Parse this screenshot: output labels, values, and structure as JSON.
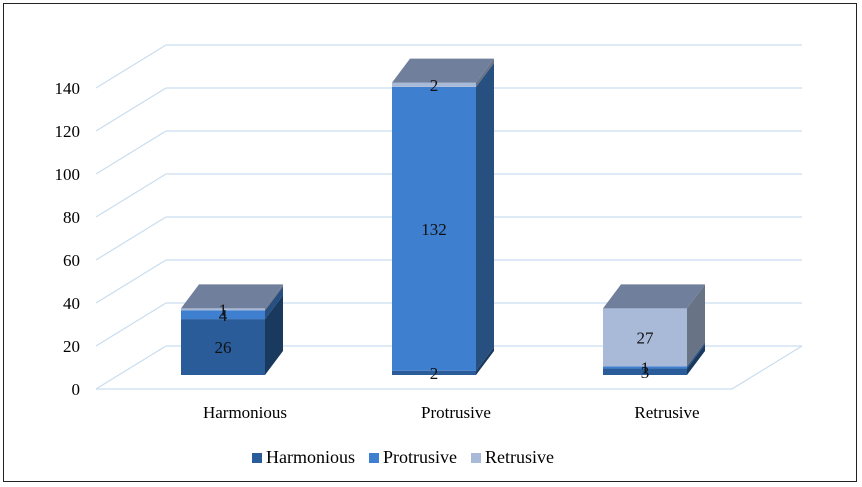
{
  "chart_data": {
    "type": "bar",
    "stacked": true,
    "three_d": true,
    "categories": [
      "Harmonious",
      "Protrusive",
      "Retrusive"
    ],
    "series": [
      {
        "name": "Harmonious",
        "values": [
          26,
          2,
          3
        ],
        "color": "#2a5c9a"
      },
      {
        "name": "Protrusive",
        "values": [
          4,
          132,
          1
        ],
        "color": "#3f7fcf"
      },
      {
        "name": "Retrusive",
        "values": [
          1,
          2,
          27
        ],
        "color": "#a9bad8"
      }
    ],
    "ylim": [
      0,
      140
    ],
    "yticks": [
      0,
      20,
      40,
      60,
      80,
      100,
      120,
      140
    ],
    "grid": true,
    "legend_position": "bottom"
  }
}
